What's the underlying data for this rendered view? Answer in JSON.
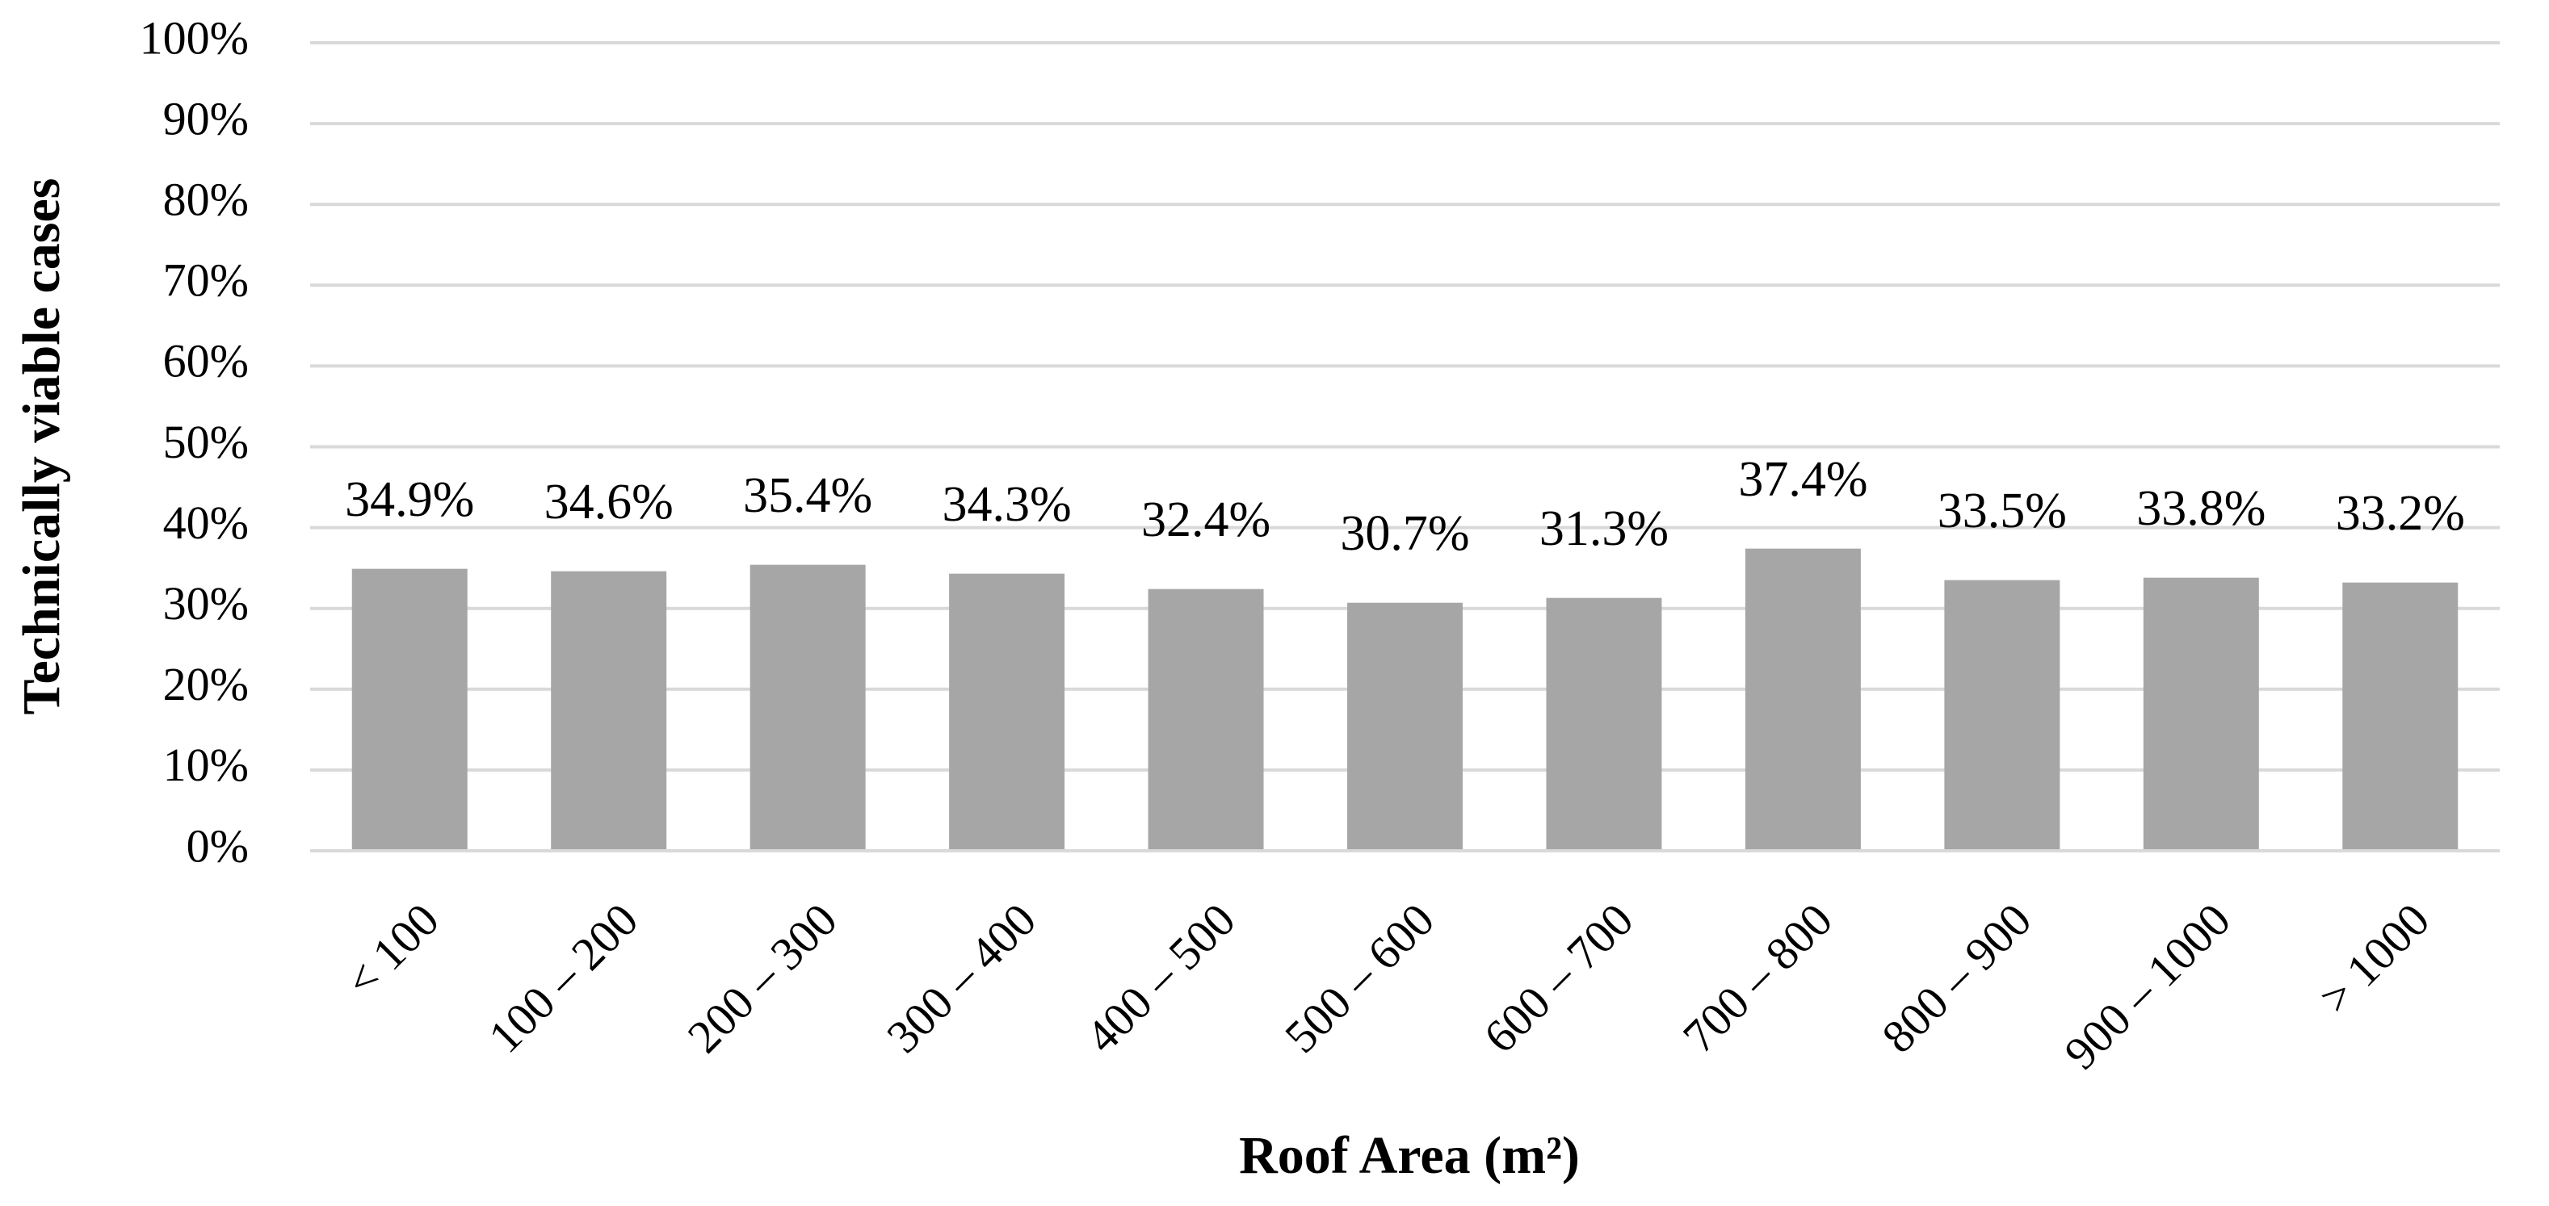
{
  "chart_data": {
    "type": "bar",
    "x_label": "Roof Area (m²)",
    "y_label": "Technically viable cases",
    "categories": [
      "< 100",
      "100 – 200",
      "200 – 300",
      "300 – 400",
      "400 – 500",
      "500 – 600",
      "600 – 700",
      "700 – 800",
      "800 – 900",
      "900 – 1000",
      "> 1000"
    ],
    "values": [
      34.9,
      34.6,
      35.4,
      34.3,
      32.4,
      30.7,
      31.3,
      37.4,
      33.5,
      33.8,
      33.2
    ],
    "value_labels": [
      "34.9%",
      "34.6%",
      "35.4%",
      "34.3%",
      "32.4%",
      "30.7%",
      "31.3%",
      "37.4%",
      "33.5%",
      "33.8%",
      "33.2%"
    ],
    "color": "#a6a6a6",
    "ylim": [
      0,
      100
    ],
    "yticks": [
      {
        "value": 0,
        "label": "0%"
      },
      {
        "value": 10,
        "label": "10%"
      },
      {
        "value": 20,
        "label": "20%"
      },
      {
        "value": 30,
        "label": "30%"
      },
      {
        "value": 40,
        "label": "40%"
      },
      {
        "value": 50,
        "label": "50%"
      },
      {
        "value": 60,
        "label": "60%"
      },
      {
        "value": 70,
        "label": "70%"
      },
      {
        "value": 80,
        "label": "80%"
      },
      {
        "value": 90,
        "label": "90%"
      },
      {
        "value": 100,
        "label": "100%"
      }
    ],
    "grid": true
  }
}
